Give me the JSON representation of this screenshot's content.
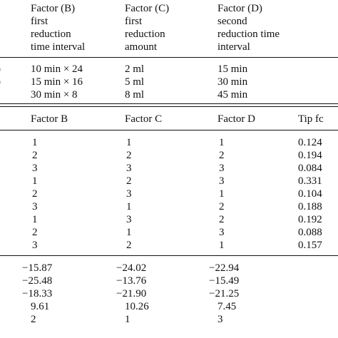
{
  "factor_header": {
    "b": [
      "Factor (B)",
      "first",
      "reduction",
      "time interval"
    ],
    "c": [
      "Factor (C)",
      "first",
      "reduction",
      "amount"
    ],
    "d": [
      "Factor (D)",
      "second",
      "reduction time",
      "interval"
    ]
  },
  "levels": [
    {
      "left": ")",
      "b": "10 min × 24",
      "c": "2 ml",
      "d": "15 min"
    },
    {
      "left": ")",
      "b": "15 min × 16",
      "c": "5 ml",
      "d": "30 min"
    },
    {
      "b": "30 min × 8",
      "c": "8 ml",
      "d": "45 min"
    }
  ],
  "design_header": [
    "Factor B",
    "Factor C",
    "Factor D",
    "Tip fc"
  ],
  "design_rows": [
    [
      "1",
      "1",
      "1",
      "0.124"
    ],
    [
      "2",
      "2",
      "2",
      "0.194"
    ],
    [
      "3",
      "3",
      "3",
      "0.084"
    ],
    [
      "1",
      "2",
      "3",
      "0.331"
    ],
    [
      "2",
      "3",
      "1",
      "0.104"
    ],
    [
      "3",
      "1",
      "2",
      "0.188"
    ],
    [
      "1",
      "3",
      "2",
      "0.192"
    ],
    [
      "2",
      "1",
      "3",
      "0.088"
    ],
    [
      "3",
      "2",
      "1",
      "0.157"
    ]
  ],
  "analysis_rows": [
    [
      "−15.87",
      "−24.02",
      "−22.94"
    ],
    [
      "−25.48",
      "−13.76",
      "−15.49"
    ],
    [
      "−18.33",
      "−21.90",
      "−21.25"
    ],
    [
      "9.61",
      "10.26",
      "7.45"
    ],
    [
      "2",
      "1",
      "3"
    ]
  ]
}
